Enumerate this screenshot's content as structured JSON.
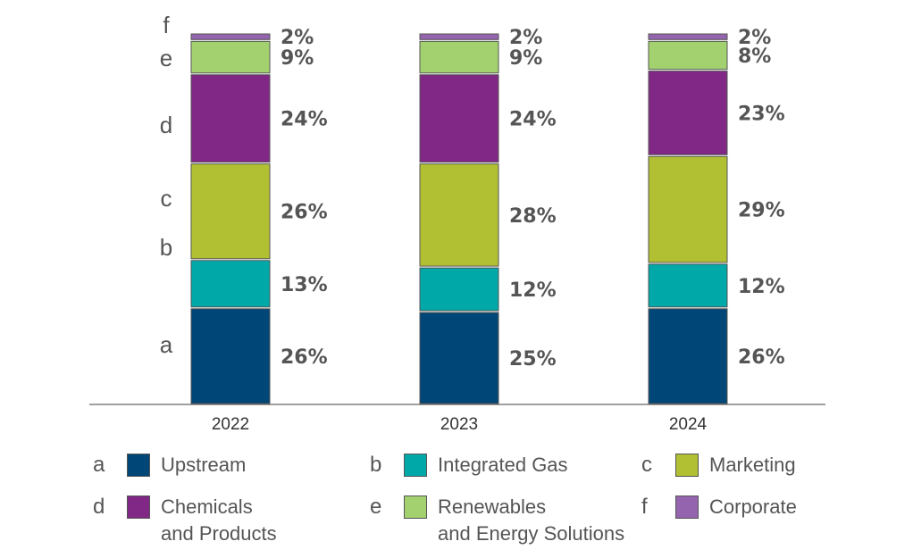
{
  "chart_data": {
    "type": "bar",
    "stacked": true,
    "categories": [
      "2022",
      "2023",
      "2024"
    ],
    "segment_letters": [
      "a",
      "b",
      "c",
      "d",
      "e",
      "f"
    ],
    "series": [
      {
        "name": "Upstream",
        "letter": "a",
        "color": "#004677",
        "values": [
          26,
          25,
          26
        ],
        "labels": [
          "26%",
          "25%",
          "26%"
        ]
      },
      {
        "name": "Integrated Gas",
        "letter": "b",
        "color": "#00a8a8",
        "values": [
          13,
          12,
          12
        ],
        "labels": [
          "13%",
          "12%",
          "12%"
        ]
      },
      {
        "name": "Marketing",
        "letter": "c",
        "color": "#b1bf33",
        "values": [
          26,
          28,
          29
        ],
        "labels": [
          "26%",
          "28%",
          "29%"
        ]
      },
      {
        "name": "Chemicals\nand Products",
        "letter": "d",
        "color": "#812785",
        "values": [
          24,
          24,
          23
        ],
        "labels": [
          "24%",
          "24%",
          "23%"
        ]
      },
      {
        "name": "Renewables\nand Energy Solutions",
        "letter": "e",
        "color": "#a3d16f",
        "values": [
          9,
          9,
          8
        ],
        "labels": [
          "9%",
          "9%",
          "8%"
        ]
      },
      {
        "name": "Corporate",
        "letter": "f",
        "color": "#9465ae",
        "values": [
          2,
          2,
          2
        ],
        "labels": [
          "2%",
          "2%",
          "2%"
        ]
      }
    ],
    "ylim": [
      0,
      100
    ],
    "title": "",
    "xlabel": "",
    "ylabel": "",
    "legend_placement": "bottom"
  }
}
